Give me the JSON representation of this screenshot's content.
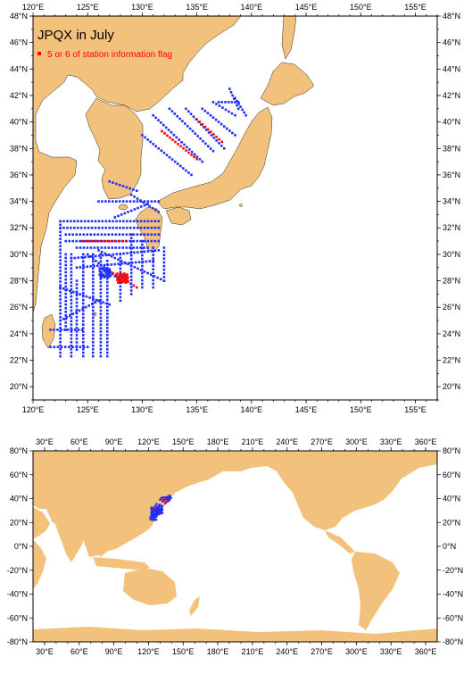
{
  "colors": {
    "land": "#f2c27d",
    "ocean": "#ffffff",
    "station": "#1f2fff",
    "flagged_station": "#ff0000",
    "frame": "#000000"
  },
  "regional_map": {
    "title": "JPQX in July",
    "legend": {
      "text": "5 or 6 of station information flag",
      "marker": "square"
    },
    "lon_range": [
      120,
      157
    ],
    "lat_range": [
      19,
      48
    ],
    "x_tick_labels": [
      "120°E",
      "125°E",
      "130°E",
      "135°E",
      "140°E",
      "145°E",
      "150°E",
      "155°E"
    ],
    "y_tick_labels": [
      "20°N",
      "22°N",
      "24°N",
      "26°N",
      "28°N",
      "30°N",
      "32°N",
      "34°N",
      "36°N",
      "38°N",
      "40°N",
      "42°N",
      "44°N",
      "46°N",
      "48°N"
    ]
  },
  "global_map": {
    "lon_range": [
      20,
      370
    ],
    "lat_range": [
      -80,
      80
    ],
    "x_tick_labels": [
      "30°E",
      "60°E",
      "90°E",
      "120°E",
      "150°E",
      "180°E",
      "210°E",
      "240°E",
      "270°E",
      "300°E",
      "330°E",
      "360°E"
    ],
    "y_tick_labels": [
      "-80°N",
      "-60°N",
      "-40°N",
      "-20°N",
      "0°N",
      "20°N",
      "40°N",
      "60°N",
      "80°N"
    ]
  },
  "stations": {
    "sections": [
      {
        "from": [
          122.5,
          32.5
        ],
        "to": [
          131.5,
          32.5
        ],
        "flag": false
      },
      {
        "from": [
          122.5,
          32.0
        ],
        "to": [
          131.5,
          32.0
        ],
        "flag": false
      },
      {
        "from": [
          123.0,
          31.5
        ],
        "to": [
          131.5,
          31.5
        ],
        "flag": false
      },
      {
        "from": [
          123.0,
          31.0
        ],
        "to": [
          131.5,
          31.0
        ],
        "flag": false
      },
      {
        "from": [
          124.5,
          31.0
        ],
        "to": [
          128.5,
          31.0
        ],
        "flag": true
      },
      {
        "from": [
          124.0,
          30.5
        ],
        "to": [
          130.5,
          30.5
        ],
        "flag": false
      },
      {
        "from": [
          123.5,
          29.7
        ],
        "to": [
          131.5,
          30.3
        ],
        "flag": false
      },
      {
        "from": [
          124.0,
          29.0
        ],
        "to": [
          131.0,
          29.5
        ],
        "flag": false
      },
      {
        "from": [
          126.0,
          30.3
        ],
        "to": [
          132.0,
          28.0
        ],
        "flag": false
      },
      {
        "from": [
          126.5,
          29.0
        ],
        "to": [
          129.5,
          27.5
        ],
        "flag": true
      },
      {
        "from": [
          125.0,
          30.0
        ],
        "to": [
          128.0,
          28.0
        ],
        "flag": false
      },
      {
        "from": [
          122.5,
          32.5
        ],
        "to": [
          122.5,
          22.3
        ],
        "flag": false
      },
      {
        "from": [
          123.0,
          30.0
        ],
        "to": [
          123.0,
          24.3
        ],
        "flag": false
      },
      {
        "from": [
          123.5,
          30.0
        ],
        "to": [
          123.5,
          22.3
        ],
        "flag": false
      },
      {
        "from": [
          124.0,
          28.0
        ],
        "to": [
          124.0,
          22.8
        ],
        "flag": false
      },
      {
        "from": [
          124.6,
          30.0
        ],
        "to": [
          124.6,
          22.3
        ],
        "flag": false
      },
      {
        "from": [
          125.5,
          30.0
        ],
        "to": [
          125.5,
          22.3
        ],
        "flag": false
      },
      {
        "from": [
          126.2,
          30.0
        ],
        "to": [
          126.2,
          22.3
        ],
        "flag": false
      },
      {
        "from": [
          126.8,
          29.5
        ],
        "to": [
          126.8,
          22.3
        ],
        "flag": false
      },
      {
        "from": [
          121.6,
          23.0
        ],
        "to": [
          125.0,
          23.0
        ],
        "flag": false
      },
      {
        "from": [
          121.6,
          24.3
        ],
        "to": [
          124.5,
          24.3
        ],
        "flag": false
      },
      {
        "from": [
          122.5,
          25.0
        ],
        "to": [
          126.0,
          26.5
        ],
        "flag": false
      },
      {
        "from": [
          122.5,
          27.5
        ],
        "to": [
          127.0,
          26.2
        ],
        "flag": false
      },
      {
        "from": [
          128.0,
          30.0
        ],
        "to": [
          128.0,
          26.5
        ],
        "flag": false
      },
      {
        "from": [
          129.0,
          31.5
        ],
        "to": [
          129.0,
          27.0
        ],
        "flag": false
      },
      {
        "from": [
          130.0,
          31.0
        ],
        "to": [
          130.0,
          27.5
        ],
        "flag": false
      },
      {
        "from": [
          131.0,
          30.5
        ],
        "to": [
          131.0,
          27.5
        ],
        "flag": false
      },
      {
        "from": [
          132.0,
          30.5
        ],
        "to": [
          132.0,
          28.0
        ],
        "flag": false
      },
      {
        "from": [
          127.5,
          32.8
        ],
        "to": [
          130.5,
          33.8
        ],
        "flag": false
      },
      {
        "from": [
          129.0,
          34.5
        ],
        "to": [
          131.5,
          33.2
        ],
        "flag": false
      },
      {
        "from": [
          126.0,
          34.0
        ],
        "to": [
          131.5,
          34.0
        ],
        "flag": false
      },
      {
        "from": [
          127.0,
          35.5
        ],
        "to": [
          129.5,
          34.8
        ],
        "flag": false
      },
      {
        "from": [
          130.0,
          39.0
        ],
        "to": [
          134.5,
          36.0
        ],
        "flag": false
      },
      {
        "from": [
          131.0,
          40.5
        ],
        "to": [
          135.5,
          37.0
        ],
        "flag": false
      },
      {
        "from": [
          131.8,
          39.3
        ],
        "to": [
          135.0,
          37.2
        ],
        "flag": true
      },
      {
        "from": [
          132.5,
          41.0
        ],
        "to": [
          136.5,
          37.8
        ],
        "flag": false
      },
      {
        "from": [
          134.0,
          41.0
        ],
        "to": [
          137.5,
          38.0
        ],
        "flag": false
      },
      {
        "from": [
          135.0,
          40.2
        ],
        "to": [
          137.3,
          38.5
        ],
        "flag": true
      },
      {
        "from": [
          135.5,
          41.0
        ],
        "to": [
          138.5,
          39.0
        ],
        "flag": false
      },
      {
        "from": [
          136.5,
          41.5
        ],
        "to": [
          138.5,
          40.5
        ],
        "flag": false
      },
      {
        "from": [
          137.0,
          41.5
        ],
        "to": [
          138.8,
          41.5
        ],
        "flag": false
      },
      {
        "from": [
          138.5,
          41.8
        ],
        "to": [
          139.5,
          40.5
        ],
        "flag": false
      },
      {
        "from": [
          138.0,
          42.5
        ],
        "to": [
          138.8,
          41.0
        ],
        "flag": false
      }
    ],
    "clusters": [
      {
        "center": [
          126.6,
          28.6
        ],
        "flag": false
      },
      {
        "center": [
          128.2,
          28.2
        ],
        "flag": true
      }
    ]
  }
}
